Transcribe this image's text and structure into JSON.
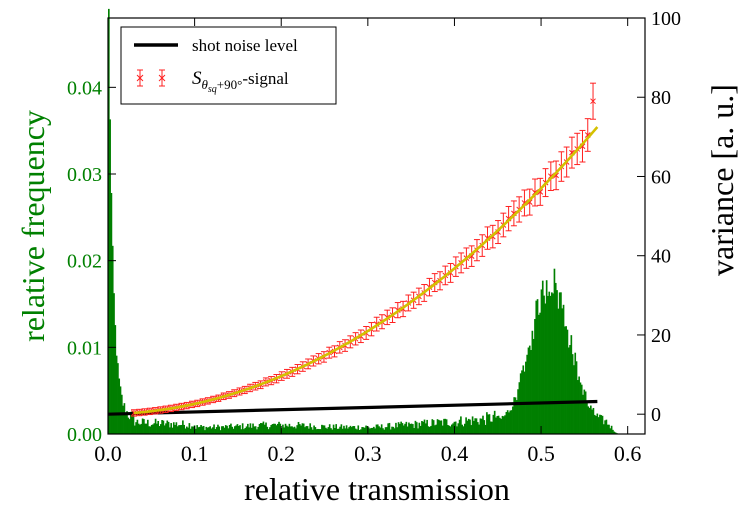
{
  "chart_data": {
    "type": "bar",
    "title": "",
    "xlabel": "relative transmission",
    "ylabel_left": "relative frequency",
    "ylabel_right": "variance [a. u.]",
    "xlim": [
      0.0,
      0.62
    ],
    "ylim_left": [
      0.0,
      0.048
    ],
    "ylim_right": [
      -5,
      100
    ],
    "x_ticks": [
      "0.0",
      "0.1",
      "0.2",
      "0.3",
      "0.4",
      "0.5",
      "0.6"
    ],
    "x_tick_values": [
      0.0,
      0.1,
      0.2,
      0.3,
      0.4,
      0.5,
      0.6
    ],
    "y_left_ticks": [
      "0.00",
      "0.01",
      "0.02",
      "0.03",
      "0.04"
    ],
    "y_left_tick_values": [
      0.0,
      0.01,
      0.02,
      0.03,
      0.04
    ],
    "y_right_ticks": [
      "0",
      "20",
      "40",
      "60",
      "80",
      "100"
    ],
    "y_right_tick_values": [
      0,
      20,
      40,
      60,
      80,
      100
    ],
    "colors": {
      "histogram": "#007f00",
      "signal": "#ff2020",
      "fit": "#d4c000",
      "shot_noise": "#000000",
      "left_axis_text": "#008000",
      "right_axis_text": "#000000"
    },
    "legend": {
      "placement": "top-left",
      "entries": [
        {
          "label": "shot noise level",
          "style": "line",
          "color": "#000000"
        },
        {
          "label_base": "S",
          "label_sub": "θ",
          "label_subsub": "sq",
          "label_suffix": "+90°",
          "label_tail": "-signal",
          "style": "errorbar",
          "color": "#ff2020"
        }
      ]
    },
    "series": [
      {
        "name": "histogram",
        "axis": "left",
        "kind": "histogram",
        "peaks": [
          {
            "center": 0.0,
            "height": 0.047,
            "decay": 0.005
          },
          {
            "center": 0.51,
            "height": 0.0165,
            "width": 0.022
          }
        ],
        "baseline": 0.0012,
        "x_range": [
          0.0,
          0.6
        ],
        "bin_width": 0.0015
      },
      {
        "name": "shot noise level",
        "axis": "right",
        "kind": "line",
        "x": [
          0.0,
          0.565
        ],
        "y": [
          0.0,
          3.2
        ]
      },
      {
        "name": "signal",
        "axis": "right",
        "kind": "errorbar",
        "x_range": [
          0.03,
          0.56
        ],
        "n_points": 88,
        "model": "quadratic",
        "coeffs": [
          0.0,
          4.0,
          220.0
        ],
        "relative_error": 0.05,
        "last_point": {
          "x": 0.56,
          "y": 79.0
        }
      },
      {
        "name": "fit",
        "axis": "right",
        "kind": "line",
        "x_range": [
          0.03,
          0.565
        ],
        "model": "quadratic",
        "coeffs": [
          0.0,
          4.0,
          220.0
        ]
      }
    ]
  }
}
